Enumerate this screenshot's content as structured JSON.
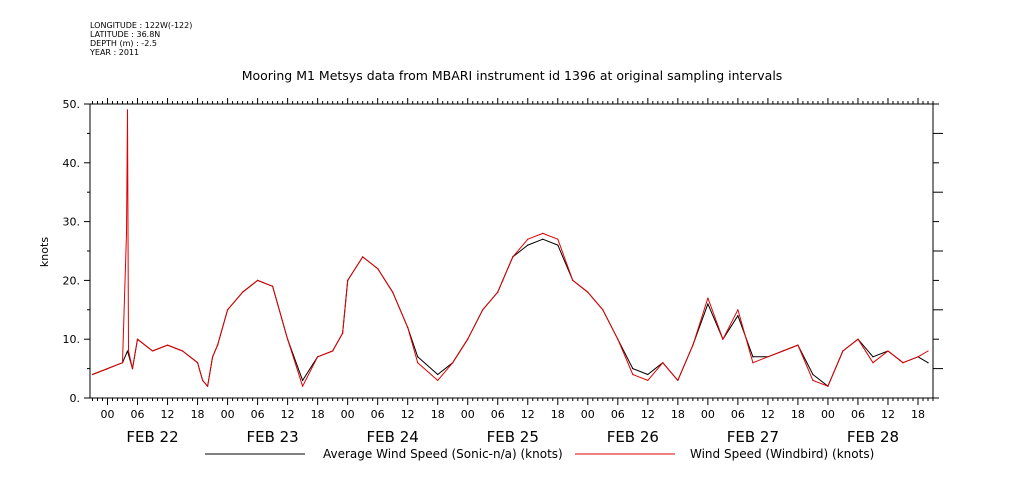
{
  "header": {
    "longitude": "LONGITUDE : 122W(-122)",
    "latitude": "LATITUDE : 36.8N",
    "depth": "DEPTH (m) : -2.5",
    "year": "YEAR : 2011"
  },
  "chart_data": {
    "type": "line",
    "title": "Mooring M1 Metsys data from MBARI instrument id 1396 at original sampling intervals",
    "ylabel": "knots",
    "xlabel": "",
    "ylim": [
      0,
      50
    ],
    "y_ticks": [
      "0.",
      "10.",
      "20.",
      "30.",
      "40.",
      "50."
    ],
    "x_range_hours": [
      -3.5,
      165
    ],
    "x_hour_ticks": [
      "00",
      "06",
      "12",
      "18",
      "00",
      "06",
      "12",
      "18",
      "00",
      "06",
      "12",
      "18",
      "00",
      "06",
      "12",
      "18",
      "00",
      "06",
      "12",
      "18",
      "00",
      "06",
      "12",
      "18",
      "00",
      "06",
      "12",
      "18"
    ],
    "date_labels": [
      "FEB 22",
      "FEB 23",
      "FEB 24",
      "FEB 25",
      "FEB 26",
      "FEB 27",
      "FEB 28"
    ],
    "grid": false,
    "legend_position": "bottom",
    "colors": {
      "avg": "#000000",
      "windbird": "#e00000"
    },
    "series": [
      {
        "name": "Average Wind Speed (Sonic-n/a) (knots)",
        "key": "avg",
        "x": [
          -3,
          0,
          3,
          4,
          5,
          6,
          9,
          12,
          15,
          18,
          19,
          20,
          21,
          22,
          24,
          27,
          30,
          33,
          36,
          39,
          42,
          45,
          47,
          48,
          51,
          54,
          57,
          60,
          62,
          66,
          69,
          72,
          75,
          78,
          79,
          81,
          84,
          87,
          90,
          93,
          96,
          99,
          102,
          105,
          108,
          111,
          114,
          117,
          120,
          123,
          126,
          129,
          132,
          135,
          138,
          141,
          144,
          147,
          150,
          153,
          156,
          159,
          162,
          164
        ],
        "y": [
          4,
          5,
          6,
          8,
          5,
          10,
          8,
          9,
          8,
          6,
          3,
          2,
          7,
          9,
          15,
          18,
          20,
          19,
          10,
          3,
          7,
          8,
          11,
          20,
          24,
          22,
          18,
          12,
          7,
          4,
          6,
          10,
          15,
          18,
          20,
          24,
          26,
          27,
          26,
          20,
          18,
          15,
          10,
          5,
          4,
          6,
          3,
          9,
          16,
          10,
          14,
          7,
          7,
          8,
          9,
          4,
          2,
          8,
          10,
          7,
          8,
          6,
          7,
          6
        ],
        "color": "#000000"
      },
      {
        "name": "Wind Speed (Windbird) (knots)",
        "key": "windbird",
        "x": [
          -3,
          0,
          3,
          3.8,
          4,
          4.2,
          5,
          6,
          9,
          12,
          15,
          18,
          19,
          20,
          21,
          22,
          24,
          27,
          30,
          33,
          36,
          39,
          42,
          45,
          47,
          48,
          51,
          54,
          57,
          60,
          62,
          66,
          69,
          72,
          75,
          78,
          79,
          81,
          84,
          87,
          90,
          93,
          96,
          99,
          102,
          105,
          108,
          111,
          114,
          117,
          120,
          123,
          126,
          129,
          132,
          135,
          138,
          141,
          144,
          147,
          150,
          153,
          156,
          159,
          162,
          164
        ],
        "y": [
          4,
          5,
          6,
          28,
          49,
          8,
          5,
          10,
          8,
          9,
          8,
          6,
          3,
          2,
          7,
          9,
          15,
          18,
          20,
          19,
          10,
          2,
          7,
          8,
          11,
          20,
          24,
          22,
          18,
          12,
          6,
          3,
          6,
          10,
          15,
          18,
          20,
          24,
          27,
          28,
          27,
          20,
          18,
          15,
          10,
          4,
          3,
          6,
          3,
          9,
          17,
          10,
          15,
          6,
          7,
          8,
          9,
          3,
          2,
          8,
          10,
          6,
          8,
          6,
          7,
          8
        ],
        "color": "#e00000"
      }
    ]
  }
}
